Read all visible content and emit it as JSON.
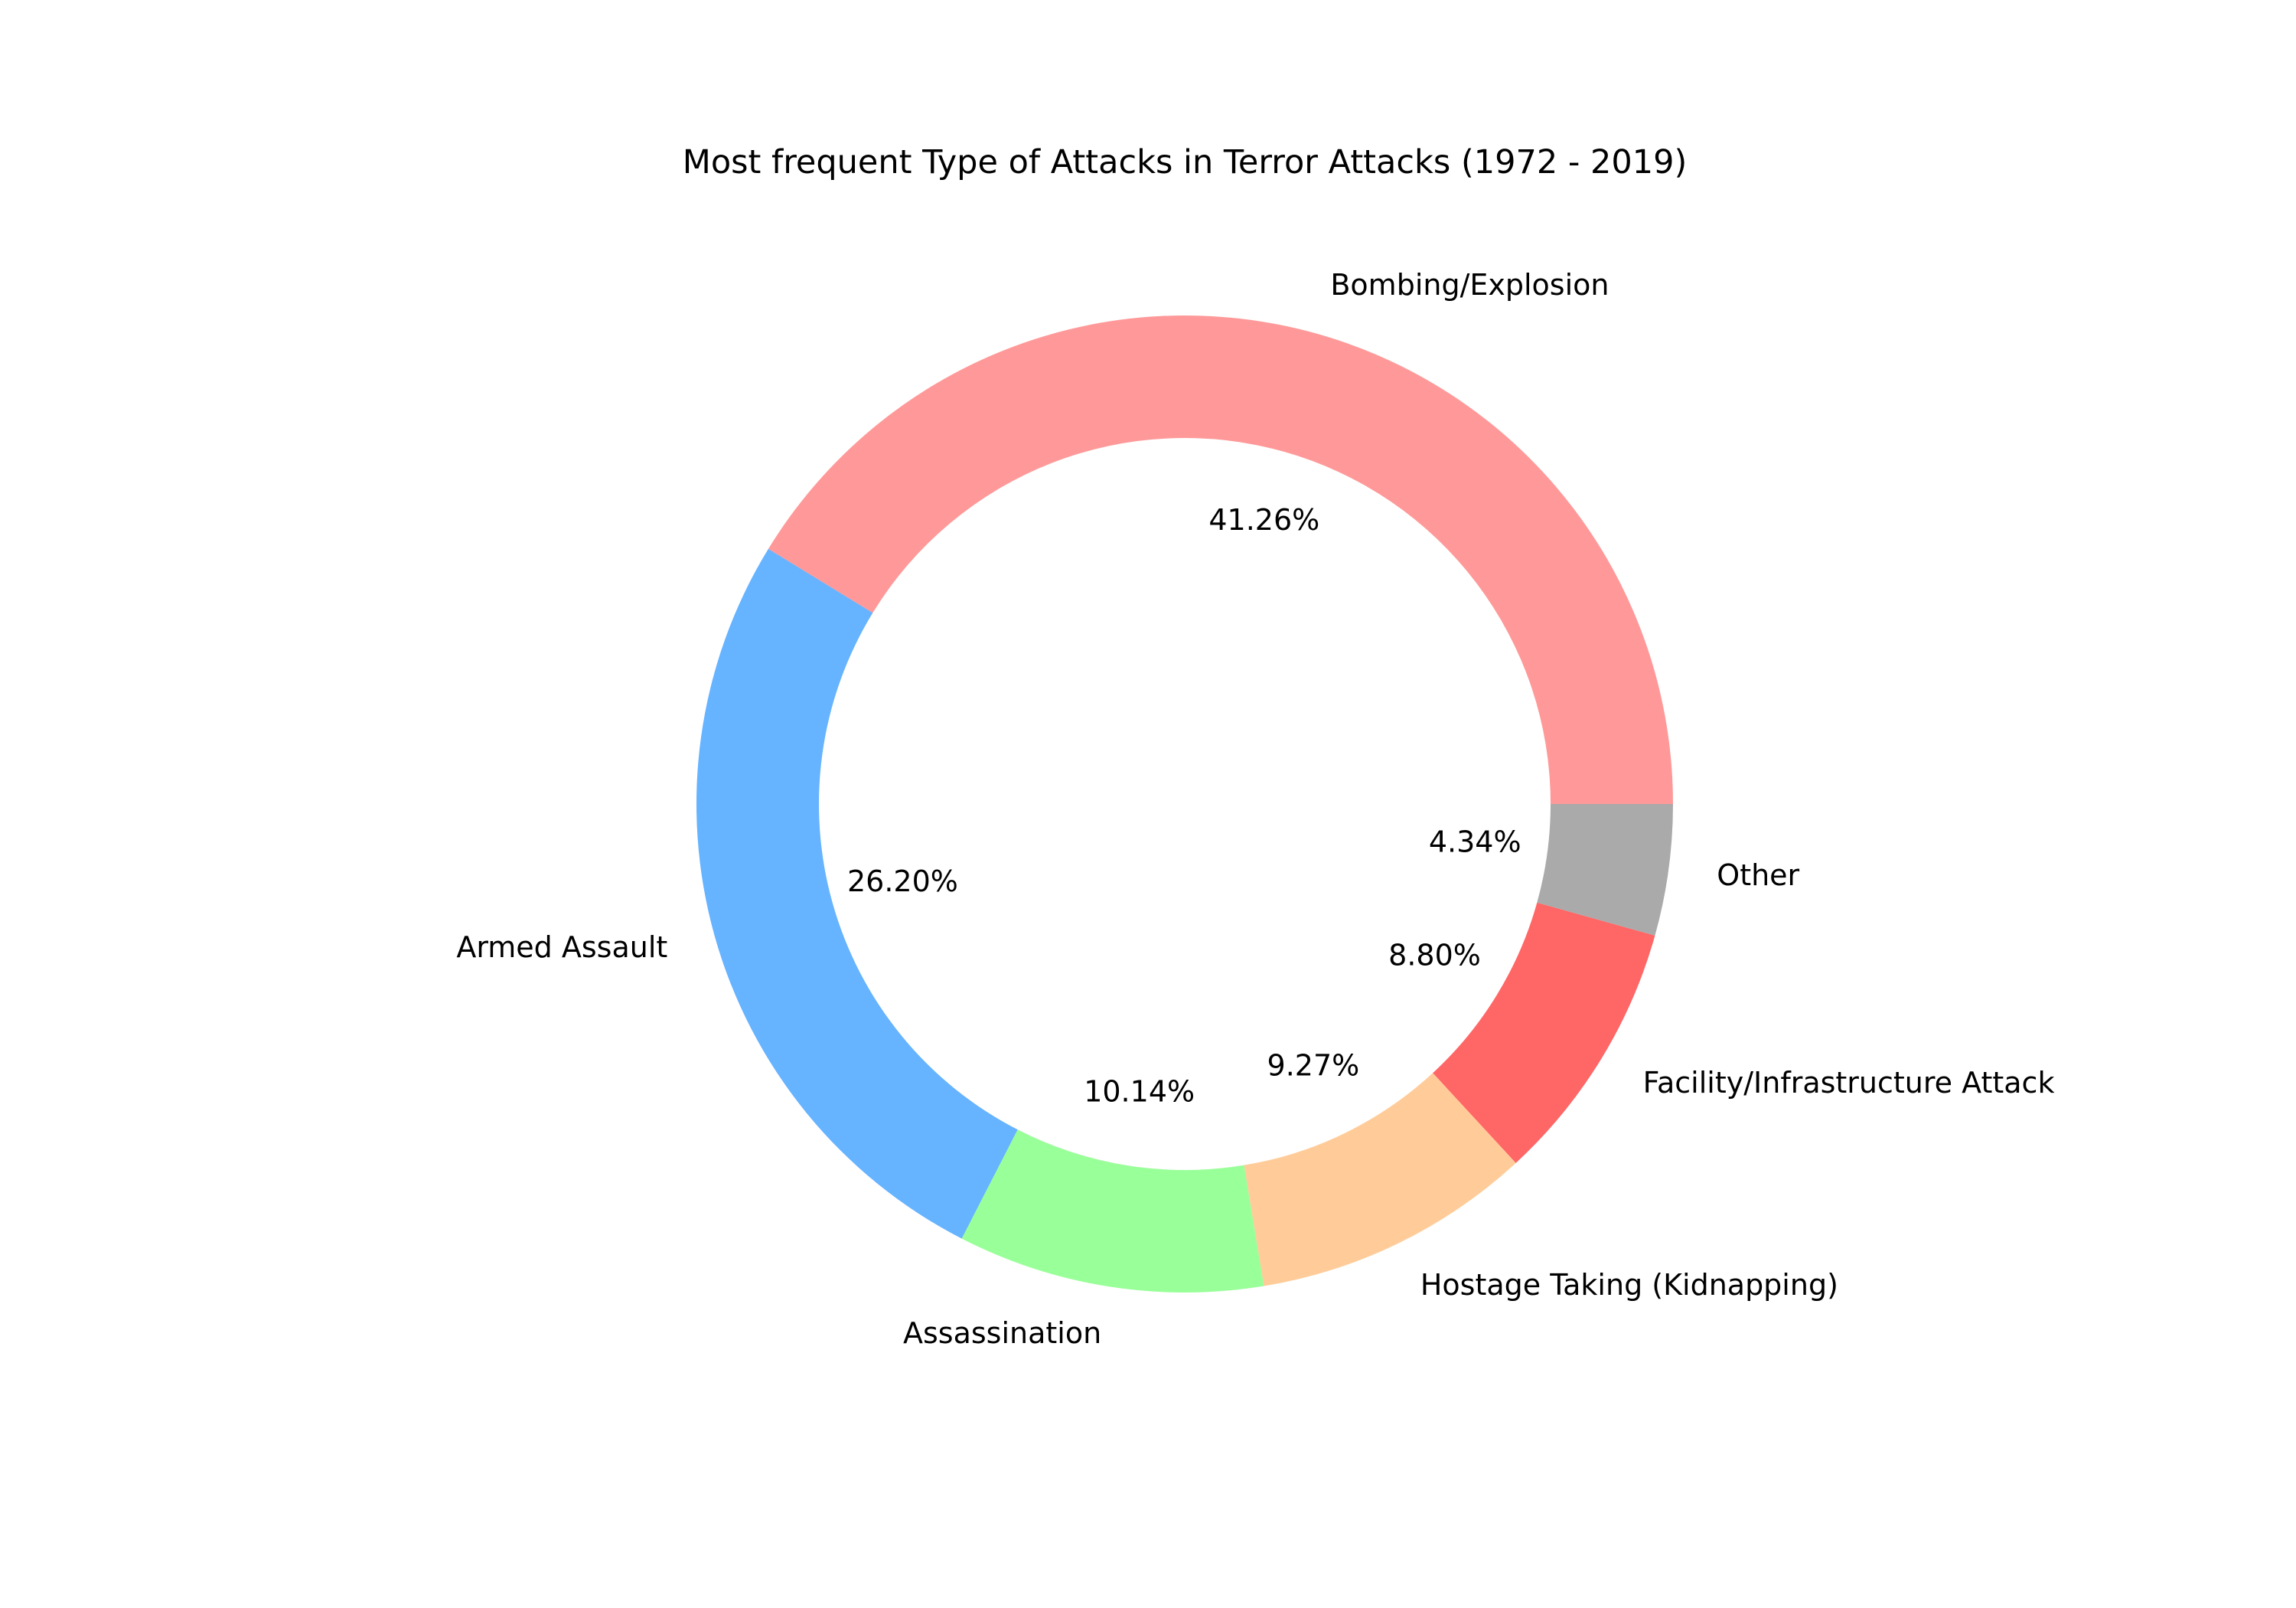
{
  "chart_data": {
    "type": "pie",
    "style": "donut",
    "title": "Most frequent Type of Attacks in Terror Attacks (1972 - 2019)",
    "start_angle_deg": 0,
    "direction": "counterclockwise",
    "slices": [
      {
        "label": "Bombing/Explosion",
        "percent": 41.26,
        "percent_label": "41.26%",
        "color": "#ff9999"
      },
      {
        "label": "Armed Assault",
        "percent": 26.2,
        "percent_label": "26.20%",
        "color": "#66b3ff"
      },
      {
        "label": "Assassination",
        "percent": 10.14,
        "percent_label": "10.14%",
        "color": "#99ff99"
      },
      {
        "label": "Hostage Taking (Kidnapping)",
        "percent": 9.27,
        "percent_label": "9.27%",
        "color": "#ffcc99"
      },
      {
        "label": "Facility/Infrastructure Attack",
        "percent": 8.8,
        "percent_label": "8.80%",
        "color": "#ff6666"
      },
      {
        "label": "Other",
        "percent": 4.34,
        "percent_label": "4.34%",
        "color": "#aaaaaa"
      }
    ]
  }
}
